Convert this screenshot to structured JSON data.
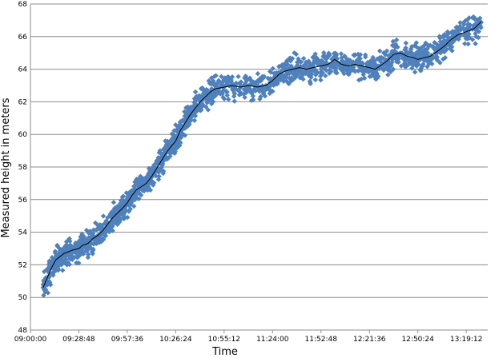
{
  "chart_data": {
    "type": "scatter",
    "title": "",
    "xlabel": "Time",
    "ylabel": "Measured height in meters",
    "ylim": [
      48,
      68
    ],
    "xlim_seconds_from_midnight": [
      32400,
      48720
    ],
    "y_ticks": [
      "48",
      "50",
      "52",
      "54",
      "56",
      "58",
      "60",
      "62",
      "64",
      "66",
      "68"
    ],
    "x_ticks": [
      "09:00:00",
      "09:28:48",
      "09:57:36",
      "10:26:24",
      "10:55:12",
      "11:24:00",
      "11:52:48",
      "12:21:36",
      "12:50:24",
      "13:19:12"
    ],
    "grid": "horizontal",
    "legend": "none",
    "series": [
      {
        "style": "markers",
        "marker": "diamond",
        "color": "#4F81BD",
        "points": [
          [
            "09:07:30",
            50.6
          ],
          [
            "09:10:00",
            51.2
          ],
          [
            "09:12:30",
            51.8
          ],
          [
            "09:15:00",
            52.3
          ],
          [
            "09:17:30",
            52.5
          ],
          [
            "09:20:00",
            52.7
          ],
          [
            "09:22:30",
            52.8
          ],
          [
            "09:25:00",
            52.9
          ],
          [
            "09:28:48",
            53.0
          ],
          [
            "09:31:00",
            53.2
          ],
          [
            "09:34:00",
            53.3
          ],
          [
            "09:37:00",
            53.6
          ],
          [
            "09:40:00",
            53.8
          ],
          [
            "09:43:00",
            54.1
          ],
          [
            "09:46:00",
            54.5
          ],
          [
            "09:49:00",
            54.9
          ],
          [
            "09:52:00",
            55.2
          ],
          [
            "09:55:00",
            55.5
          ],
          [
            "09:57:36",
            55.8
          ],
          [
            "10:00:00",
            56.2
          ],
          [
            "10:03:00",
            56.6
          ],
          [
            "10:06:00",
            56.8
          ],
          [
            "10:09:00",
            57.0
          ],
          [
            "10:12:00",
            57.4
          ],
          [
            "10:15:00",
            57.9
          ],
          [
            "10:18:00",
            58.4
          ],
          [
            "10:21:00",
            58.9
          ],
          [
            "10:24:00",
            59.3
          ],
          [
            "10:26:24",
            59.6
          ],
          [
            "10:29:00",
            60.2
          ],
          [
            "10:32:00",
            60.7
          ],
          [
            "10:35:00",
            61.2
          ],
          [
            "10:38:00",
            61.6
          ],
          [
            "10:41:00",
            62.0
          ],
          [
            "10:44:00",
            62.3
          ],
          [
            "10:47:00",
            62.6
          ],
          [
            "10:50:00",
            62.8
          ],
          [
            "10:55:12",
            62.9
          ],
          [
            "11:00:00",
            63.0
          ],
          [
            "11:05:00",
            62.9
          ],
          [
            "11:10:00",
            63.0
          ],
          [
            "11:15:00",
            62.9
          ],
          [
            "11:20:00",
            63.0
          ],
          [
            "11:24:00",
            63.3
          ],
          [
            "11:28:00",
            63.7
          ],
          [
            "11:32:00",
            63.9
          ],
          [
            "11:36:00",
            64.0
          ],
          [
            "11:40:00",
            64.1
          ],
          [
            "11:44:00",
            64.0
          ],
          [
            "11:48:00",
            64.1
          ],
          [
            "11:52:48",
            64.2
          ],
          [
            "11:57:00",
            64.3
          ],
          [
            "12:01:00",
            64.6
          ],
          [
            "12:05:00",
            64.3
          ],
          [
            "12:09:00",
            64.2
          ],
          [
            "12:13:00",
            64.3
          ],
          [
            "12:17:00",
            64.2
          ],
          [
            "12:21:36",
            64.1
          ],
          [
            "12:25:00",
            64.0
          ],
          [
            "12:28:00",
            64.2
          ],
          [
            "12:32:00",
            64.5
          ],
          [
            "12:36:00",
            64.9
          ],
          [
            "12:40:00",
            65.0
          ],
          [
            "12:44:00",
            64.8
          ],
          [
            "12:48:00",
            64.7
          ],
          [
            "12:50:24",
            64.6
          ],
          [
            "12:54:00",
            64.7
          ],
          [
            "12:58:00",
            64.8
          ],
          [
            "13:02:00",
            65.1
          ],
          [
            "13:06:00",
            65.4
          ],
          [
            "13:10:00",
            65.8
          ],
          [
            "13:14:00",
            66.1
          ],
          [
            "13:19:12",
            66.3
          ],
          [
            "13:24:00",
            66.5
          ],
          [
            "13:28:00",
            66.9
          ]
        ]
      },
      {
        "style": "line",
        "color": "#000000",
        "points": [
          [
            "09:07:30",
            50.6
          ],
          [
            "09:10:00",
            51.2
          ],
          [
            "09:12:30",
            51.8
          ],
          [
            "09:15:00",
            52.3
          ],
          [
            "09:17:30",
            52.5
          ],
          [
            "09:20:00",
            52.7
          ],
          [
            "09:22:30",
            52.8
          ],
          [
            "09:25:00",
            52.9
          ],
          [
            "09:28:48",
            53.0
          ],
          [
            "09:31:00",
            53.2
          ],
          [
            "09:34:00",
            53.3
          ],
          [
            "09:37:00",
            53.6
          ],
          [
            "09:40:00",
            53.8
          ],
          [
            "09:43:00",
            54.1
          ],
          [
            "09:46:00",
            54.5
          ],
          [
            "09:49:00",
            54.9
          ],
          [
            "09:52:00",
            55.2
          ],
          [
            "09:55:00",
            55.5
          ],
          [
            "09:57:36",
            55.8
          ],
          [
            "10:00:00",
            56.2
          ],
          [
            "10:03:00",
            56.6
          ],
          [
            "10:06:00",
            56.8
          ],
          [
            "10:09:00",
            57.0
          ],
          [
            "10:12:00",
            57.4
          ],
          [
            "10:15:00",
            57.9
          ],
          [
            "10:18:00",
            58.4
          ],
          [
            "10:21:00",
            58.9
          ],
          [
            "10:24:00",
            59.3
          ],
          [
            "10:26:24",
            59.6
          ],
          [
            "10:29:00",
            60.2
          ],
          [
            "10:32:00",
            60.7
          ],
          [
            "10:35:00",
            61.2
          ],
          [
            "10:38:00",
            61.6
          ],
          [
            "10:41:00",
            62.0
          ],
          [
            "10:44:00",
            62.3
          ],
          [
            "10:47:00",
            62.6
          ],
          [
            "10:50:00",
            62.8
          ],
          [
            "10:55:12",
            62.9
          ],
          [
            "11:00:00",
            63.0
          ],
          [
            "11:05:00",
            62.9
          ],
          [
            "11:10:00",
            63.0
          ],
          [
            "11:15:00",
            62.9
          ],
          [
            "11:20:00",
            63.0
          ],
          [
            "11:24:00",
            63.3
          ],
          [
            "11:28:00",
            63.7
          ],
          [
            "11:32:00",
            63.9
          ],
          [
            "11:36:00",
            64.0
          ],
          [
            "11:40:00",
            64.1
          ],
          [
            "11:44:00",
            64.0
          ],
          [
            "11:48:00",
            64.1
          ],
          [
            "11:52:48",
            64.2
          ],
          [
            "11:57:00",
            64.3
          ],
          [
            "12:01:00",
            64.6
          ],
          [
            "12:05:00",
            64.3
          ],
          [
            "12:09:00",
            64.2
          ],
          [
            "12:13:00",
            64.3
          ],
          [
            "12:17:00",
            64.2
          ],
          [
            "12:21:36",
            64.1
          ],
          [
            "12:25:00",
            64.0
          ],
          [
            "12:28:00",
            64.2
          ],
          [
            "12:32:00",
            64.5
          ],
          [
            "12:36:00",
            64.9
          ],
          [
            "12:40:00",
            65.0
          ],
          [
            "12:44:00",
            64.8
          ],
          [
            "12:48:00",
            64.7
          ],
          [
            "12:50:24",
            64.6
          ],
          [
            "12:54:00",
            64.7
          ],
          [
            "12:58:00",
            64.8
          ],
          [
            "13:02:00",
            65.1
          ],
          [
            "13:06:00",
            65.4
          ],
          [
            "13:10:00",
            65.8
          ],
          [
            "13:14:00",
            66.1
          ],
          [
            "13:19:12",
            66.3
          ],
          [
            "13:24:00",
            66.5
          ],
          [
            "13:28:00",
            66.9
          ]
        ]
      }
    ]
  }
}
